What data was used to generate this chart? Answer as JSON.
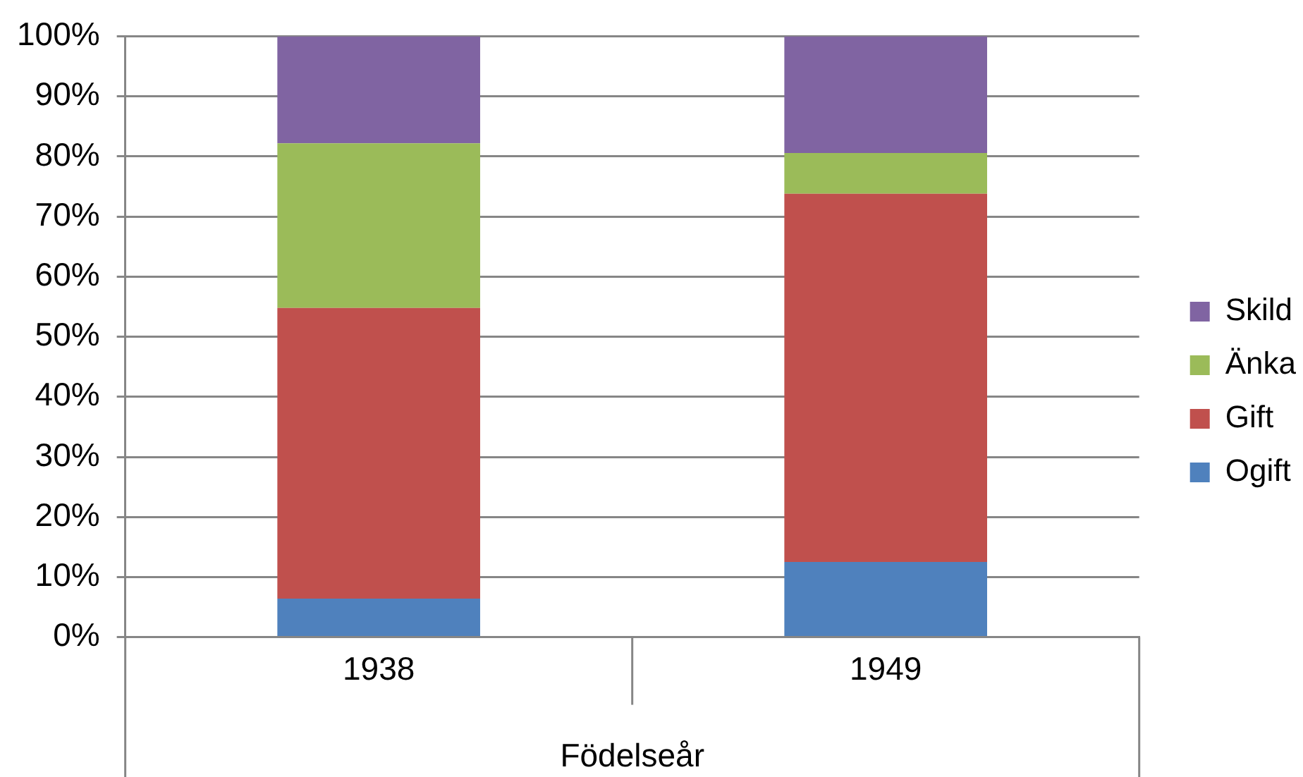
{
  "chart_data": {
    "type": "bar",
    "stacked": true,
    "categories": [
      "1938",
      "1949"
    ],
    "xlabel": "Födelseår",
    "series": [
      {
        "name": "Ogift",
        "color": "#4f81bd",
        "values": [
          6.4,
          12.5
        ]
      },
      {
        "name": "Gift",
        "color": "#c0504d",
        "values": [
          48.4,
          61.3
        ]
      },
      {
        "name": "Änka",
        "color": "#9bbb59",
        "values": [
          27.4,
          6.8
        ]
      },
      {
        "name": "Skild",
        "color": "#8064a2",
        "values": [
          17.8,
          19.4
        ]
      }
    ],
    "ylim": [
      0,
      100
    ],
    "yticks": [
      {
        "value": 0,
        "label": "0%"
      },
      {
        "value": 10,
        "label": "10%"
      },
      {
        "value": 20,
        "label": "20%"
      },
      {
        "value": 30,
        "label": "30%"
      },
      {
        "value": 40,
        "label": "40%"
      },
      {
        "value": 50,
        "label": "50%"
      },
      {
        "value": 60,
        "label": "60%"
      },
      {
        "value": 70,
        "label": "70%"
      },
      {
        "value": 80,
        "label": "80%"
      },
      {
        "value": 90,
        "label": "90%"
      },
      {
        "value": 100,
        "label": "100%"
      }
    ],
    "grid": "y",
    "legend": "right"
  }
}
